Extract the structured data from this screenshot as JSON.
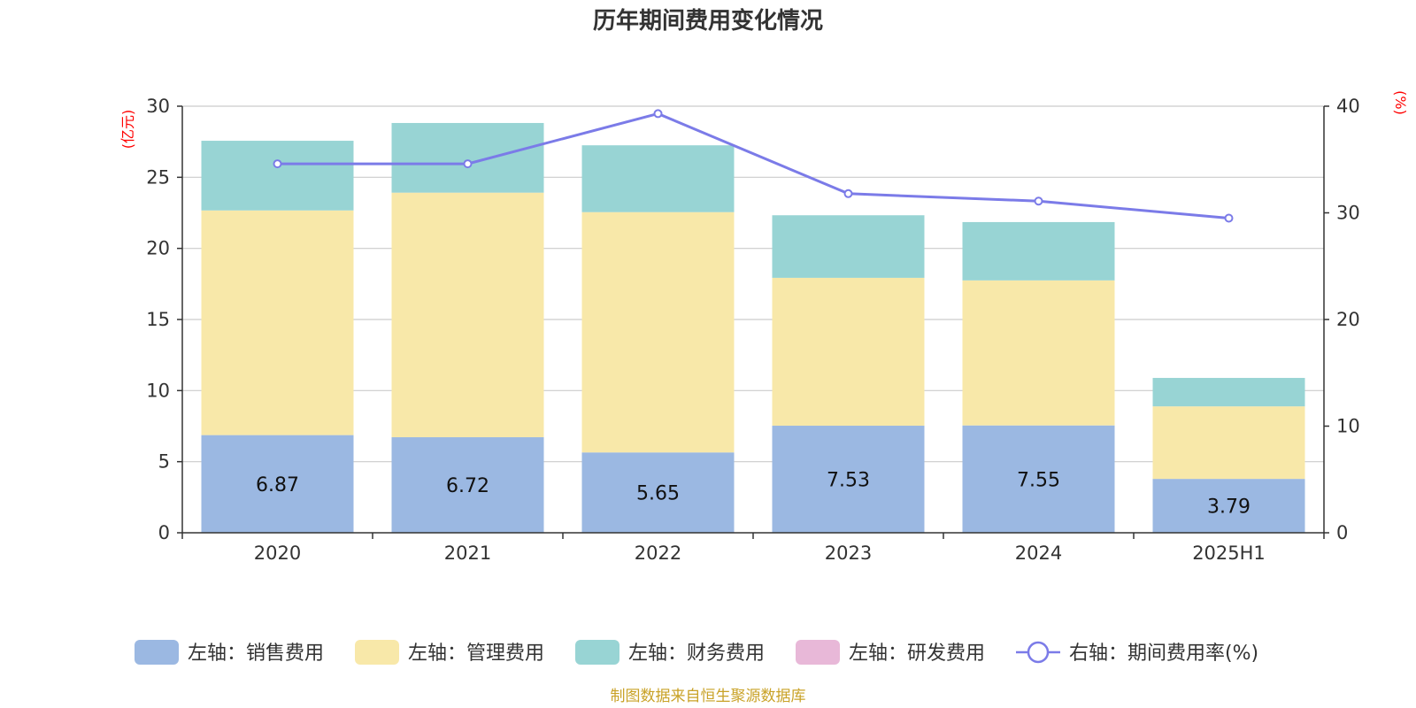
{
  "title": "历年期间费用变化情况",
  "source": "制图数据来自恒生聚源数据库",
  "chart_data": {
    "type": "bar",
    "stacked": true,
    "categories": [
      "2020",
      "2021",
      "2022",
      "2023",
      "2024",
      "2025H1"
    ],
    "y_left": {
      "unit": "(亿元)",
      "min": 0,
      "max": 30,
      "ticks": [
        0,
        5,
        10,
        15,
        20,
        25,
        30
      ]
    },
    "y_right": {
      "unit": "(%)",
      "min": 0,
      "max": 40,
      "ticks": [
        0,
        10,
        20,
        30,
        40
      ]
    },
    "grid": true,
    "legend_position": "bottom",
    "series": [
      {
        "name": "左轴：销售费用",
        "axis": "left",
        "type": "bar",
        "color": "#9bb8e2",
        "values": [
          6.87,
          6.72,
          5.65,
          7.53,
          7.55,
          3.79
        ],
        "labels_shown": true
      },
      {
        "name": "左轴：管理费用",
        "axis": "left",
        "type": "bar",
        "color": "#f8e8a9",
        "values": [
          15.8,
          17.2,
          16.9,
          10.4,
          10.2,
          5.1
        ]
      },
      {
        "name": "左轴：财务费用",
        "axis": "left",
        "type": "bar",
        "color": "#98d4d4",
        "values": [
          4.9,
          4.9,
          4.7,
          4.4,
          4.1,
          2.0
        ]
      },
      {
        "name": "左轴：研发费用",
        "axis": "left",
        "type": "bar",
        "color": "#e8b8d8",
        "values": [
          0,
          0,
          0,
          0,
          0,
          0
        ]
      },
      {
        "name": "右轴：期间费用率(%)",
        "axis": "right",
        "type": "line",
        "color": "#7b7be8",
        "values": [
          34.6,
          34.6,
          39.3,
          31.8,
          31.1,
          29.5
        ]
      }
    ]
  }
}
